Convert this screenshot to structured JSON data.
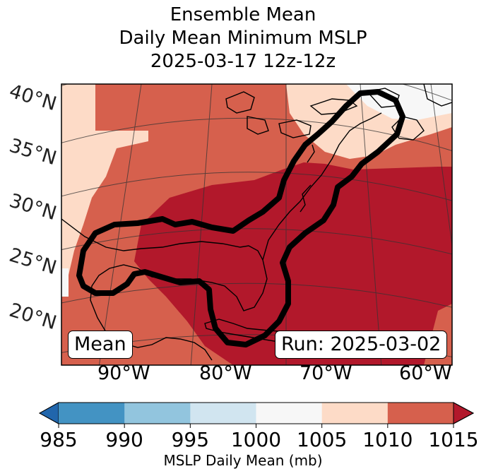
{
  "title": {
    "line1": "Ensemble Mean",
    "line2": "Daily Mean Minimum MSLP",
    "line3": "2025-03-17 12z-12z"
  },
  "map": {
    "lat_labels": [
      "40°N",
      "35°N",
      "30°N",
      "25°N",
      "20°N"
    ],
    "lon_labels": [
      "90°W",
      "80°W",
      "70°W",
      "60°W"
    ],
    "mean_label": "Mean",
    "run_label": "Run: 2025-03-02",
    "colors": {
      "c1010_1015": "#b2182b",
      "c1005_1010": "#d6604d",
      "c1000_1005": "#fddbc7",
      "c995_1000": "#f7f7f7",
      "grid": "#333333",
      "contour": "#000000"
    }
  },
  "colorbar": {
    "ticks": [
      "985",
      "990",
      "995",
      "1000",
      "1005",
      "1010",
      "1015"
    ],
    "colors": [
      "#2166ac",
      "#4393c3",
      "#92c5de",
      "#d1e5f0",
      "#f7f7f7",
      "#fddbc7",
      "#d6604d",
      "#b2182b"
    ],
    "label": "MSLP Daily Mean (mb)"
  }
}
